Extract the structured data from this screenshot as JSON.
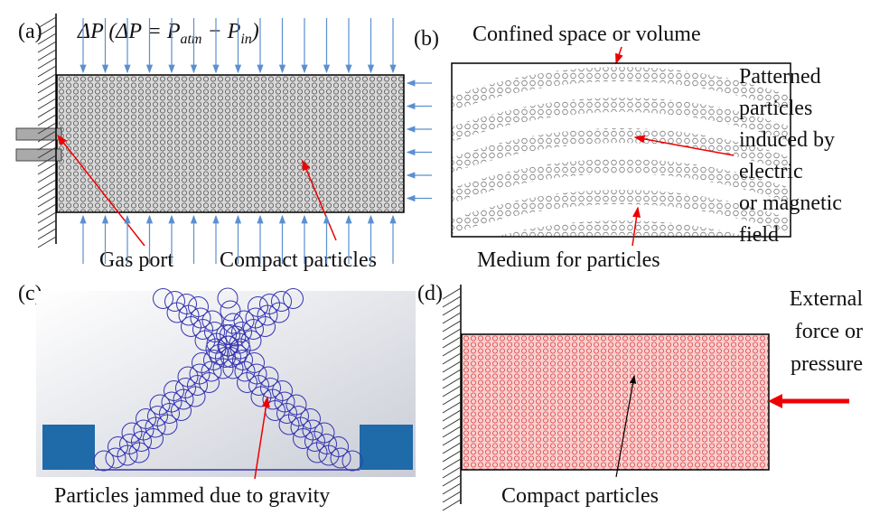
{
  "panel_a": {
    "label": "(a)",
    "formula": {
      "main": "ΔP (ΔP = P",
      "sub1": "atm",
      "mid": " − P",
      "sub2": "in",
      "end": ")"
    },
    "gas_port": "Gas port",
    "particles": "Compact particles"
  },
  "panel_b": {
    "label": "(b)",
    "top": "Confined space or volume",
    "side": [
      "Patterned",
      "particles",
      "induced by",
      "electric",
      "or magnetic",
      "field"
    ],
    "bottom": "Medium for particles"
  },
  "panel_c": {
    "label": "(c)",
    "caption": "Particles jammed due to gravity"
  },
  "panel_d": {
    "label": "(d)",
    "side": [
      "External",
      "force or",
      "pressure"
    ],
    "caption": "Compact particles"
  }
}
